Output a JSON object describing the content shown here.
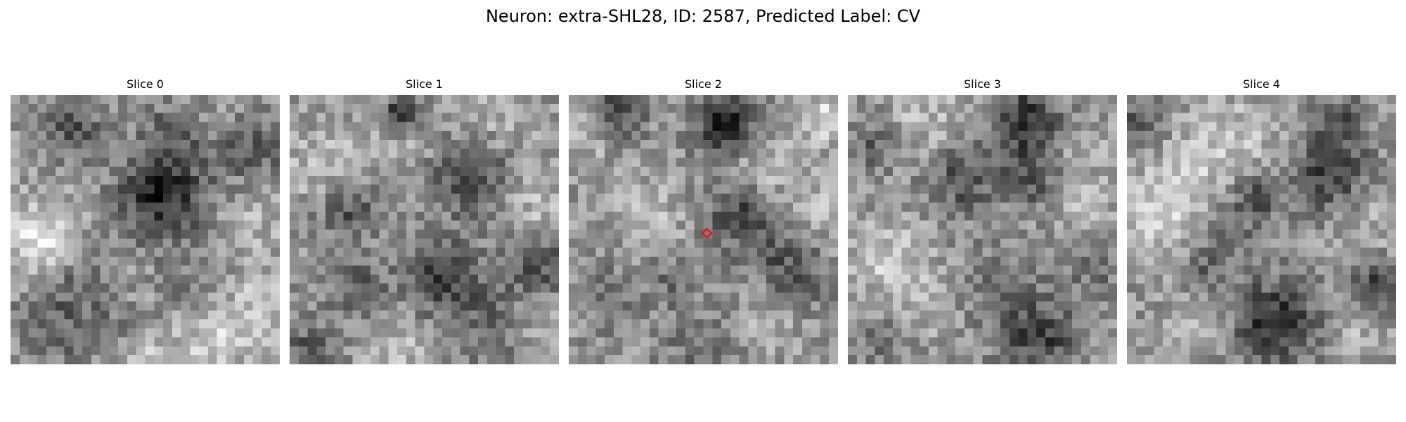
{
  "figure": {
    "title": "Neuron: extra-SHL28, ID: 2587, Predicted Label: CV"
  },
  "panels": [
    {
      "title": "Slice 0",
      "colormap": "gray",
      "grid": 30,
      "blobs": [
        [
          16.5,
          10.5,
          3.5,
          -115
        ],
        [
          6.5,
          3.5,
          2.2,
          -65
        ],
        [
          17.5,
          3.5,
          2.0,
          -60
        ],
        [
          26.5,
          5.5,
          2.5,
          -60
        ],
        [
          8,
          19.5,
          3.0,
          -55
        ],
        [
          5,
          25,
          3.5,
          -45
        ],
        [
          12,
          25,
          2.5,
          -40
        ],
        [
          20,
          21,
          3.0,
          -30
        ],
        [
          3,
          15,
          3,
          50
        ],
        [
          3,
          17,
          3,
          40
        ],
        [
          22,
          27,
          3.0,
          55
        ],
        [
          14,
          28,
          2.5,
          45
        ],
        [
          27,
          23,
          3.0,
          40
        ],
        [
          11,
          21,
          3,
          35
        ],
        [
          26,
          14,
          3,
          25
        ]
      ]
    },
    {
      "title": "Slice 1",
      "colormap": "gray",
      "grid": 30,
      "blobs": [
        [
          12,
          1.5,
          1.5,
          -120
        ],
        [
          19.5,
          8.5,
          2.8,
          -90
        ],
        [
          6,
          12,
          2.5,
          -70
        ],
        [
          16.5,
          19.5,
          3.0,
          -85
        ],
        [
          27,
          18.5,
          2.5,
          -70
        ],
        [
          7,
          21,
          2.2,
          -60
        ],
        [
          2,
          28,
          2.0,
          -70
        ],
        [
          22,
          25,
          3.0,
          -50
        ],
        [
          11,
          4,
          3,
          30
        ],
        [
          23,
          2,
          3,
          25
        ],
        [
          3,
          8,
          3,
          40
        ],
        [
          11.5,
          28,
          2.5,
          40
        ],
        [
          27,
          25,
          2.5,
          30
        ],
        [
          27,
          12,
          2.5,
          35
        ]
      ]
    },
    {
      "title": "Slice 2",
      "colormap": "gray",
      "grid": 30,
      "marker": [
        14.9,
        14.9
      ],
      "blobs": [
        [
          17,
          2.5,
          2.5,
          -120
        ],
        [
          5,
          1.5,
          2.0,
          -90
        ],
        [
          19,
          12.5,
          3.0,
          -80
        ],
        [
          24,
          19.5,
          3.0,
          -70
        ],
        [
          11,
          20,
          2.0,
          -40
        ],
        [
          4,
          22,
          2.5,
          -40
        ],
        [
          21,
          8,
          2.5,
          50
        ],
        [
          28,
          2,
          2.0,
          60
        ],
        [
          2,
          4,
          2.0,
          40
        ],
        [
          27,
          12,
          3,
          30
        ],
        [
          22,
          24,
          2.5,
          45
        ],
        [
          9,
          13,
          3,
          30
        ],
        [
          14,
          28,
          3,
          -40
        ]
      ]
    },
    {
      "title": "Slice 3",
      "colormap": "gray",
      "grid": 30,
      "blobs": [
        [
          19.5,
          2.5,
          2.8,
          -110
        ],
        [
          12,
          9,
          2.5,
          -70
        ],
        [
          20,
          9,
          2.5,
          -60
        ],
        [
          2.5,
          5,
          2.0,
          -50
        ],
        [
          21,
          26.5,
          2.8,
          -85
        ],
        [
          15,
          22,
          3.5,
          -40
        ],
        [
          27,
          18,
          3.0,
          -40
        ],
        [
          3,
          27,
          2.0,
          -40
        ],
        [
          4,
          18,
          3.0,
          50
        ],
        [
          8,
          2,
          3,
          35
        ],
        [
          26,
          12,
          3,
          35
        ],
        [
          10,
          23,
          3,
          30
        ],
        [
          24,
          5,
          2.5,
          30
        ]
      ]
    },
    {
      "title": "Slice 4",
      "colormap": "gray",
      "grid": 30,
      "blobs": [
        [
          22,
          8.5,
          3.0,
          -85
        ],
        [
          14,
          11,
          1.8,
          -70
        ],
        [
          23.5,
          2.5,
          2.0,
          -70
        ],
        [
          1,
          3,
          1.8,
          -70
        ],
        [
          16,
          25,
          3.5,
          -105
        ],
        [
          27.5,
          20.5,
          2.0,
          -80
        ],
        [
          8.5,
          19,
          2.0,
          -50
        ],
        [
          11,
          15,
          2.0,
          -40
        ],
        [
          3,
          13,
          3.0,
          60
        ],
        [
          6,
          8,
          3,
          45
        ],
        [
          12,
          4,
          3,
          40
        ],
        [
          8,
          24,
          2.5,
          40
        ],
        [
          25,
          26,
          2.5,
          30
        ],
        [
          26,
          14,
          3,
          30
        ]
      ]
    }
  ]
}
